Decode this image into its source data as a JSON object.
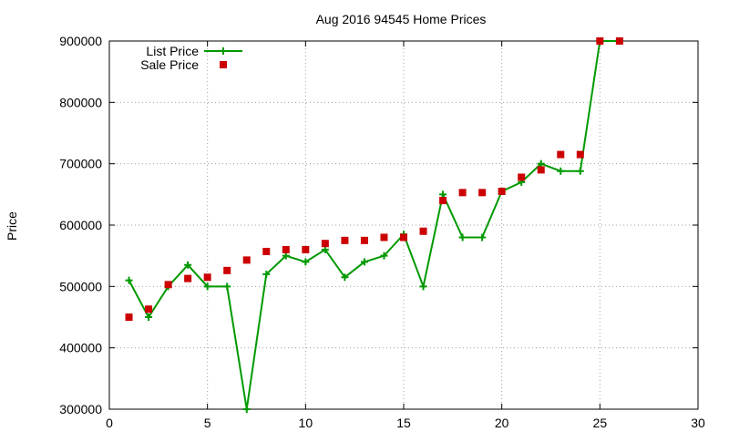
{
  "chart_data": {
    "type": "line",
    "title": "Aug 2016 94545 Home Prices",
    "xlabel": "",
    "ylabel": "Price",
    "xlim": [
      0,
      30
    ],
    "ylim": [
      300000,
      900000
    ],
    "x_ticks": [
      0,
      5,
      10,
      15,
      20,
      25,
      30
    ],
    "y_ticks": [
      300000,
      400000,
      500000,
      600000,
      700000,
      800000,
      900000
    ],
    "grid": true,
    "legend_position": "top-left",
    "series": [
      {
        "name": "List Price",
        "style": "linespoints",
        "color": "#009900",
        "x": [
          1,
          2,
          3,
          4,
          5,
          6,
          7,
          8,
          9,
          10,
          11,
          12,
          13,
          14,
          15,
          16,
          17,
          18,
          19,
          20,
          21,
          22,
          23,
          24,
          25,
          26
        ],
        "y": [
          510000,
          450000,
          500000,
          535000,
          500000,
          500000,
          300000,
          520000,
          550000,
          540000,
          560000,
          515000,
          540000,
          550000,
          585000,
          500000,
          650000,
          580000,
          580000,
          655000,
          670000,
          700000,
          688000,
          688000,
          900000,
          900000
        ]
      },
      {
        "name": "Sale Price",
        "style": "points",
        "color": "#cc0000",
        "x": [
          1,
          2,
          3,
          4,
          5,
          6,
          7,
          8,
          9,
          10,
          11,
          12,
          13,
          14,
          15,
          16,
          17,
          18,
          19,
          20,
          21,
          22,
          23,
          24,
          25,
          26
        ],
        "y": [
          450000,
          463000,
          503000,
          513000,
          515000,
          526000,
          543000,
          557000,
          560000,
          560000,
          570000,
          575000,
          575000,
          580000,
          580000,
          590000,
          640000,
          653000,
          653000,
          655000,
          678000,
          690000,
          715000,
          715000,
          900000,
          900000
        ]
      }
    ]
  }
}
